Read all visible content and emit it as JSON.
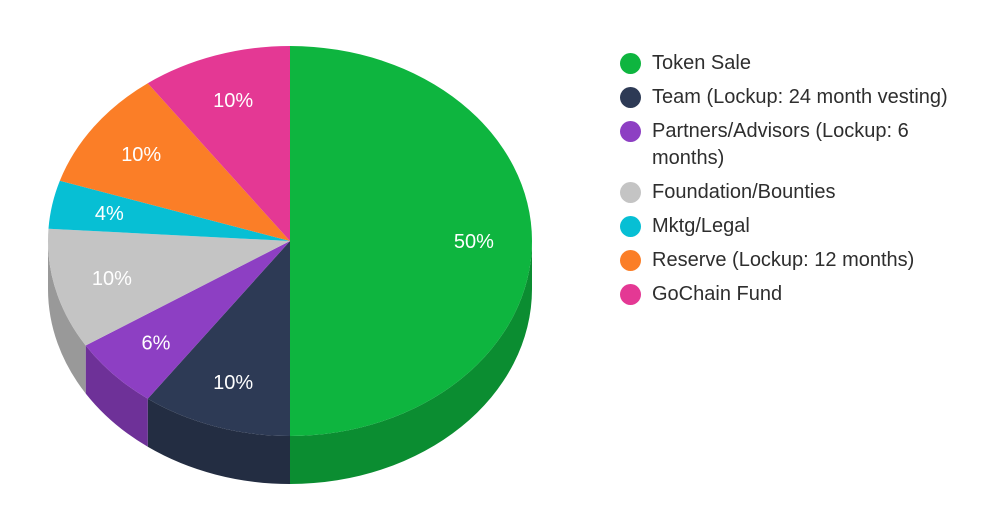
{
  "chart_data": {
    "type": "pie",
    "title": "",
    "categories": [
      "Token Sale",
      "Team (Lockup: 24 month vesting)",
      "Partners/Advisors (Lockup: 6 months)",
      "Foundation/Bounties",
      "Mktg/Legal",
      "Reserve (Lockup: 12 months)",
      "GoChain Fund"
    ],
    "values": [
      50,
      10,
      6,
      10,
      4,
      10,
      10
    ],
    "labels": [
      "50%",
      "10%",
      "6%",
      "10%",
      "4%",
      "10%",
      "10%"
    ],
    "colors": [
      "#0eb53f",
      "#2d3a55",
      "#8d3fc3",
      "#c4c4c4",
      "#07bfd4",
      "#fb7e27",
      "#e43894"
    ],
    "legend_position": "right",
    "style": "3d"
  }
}
